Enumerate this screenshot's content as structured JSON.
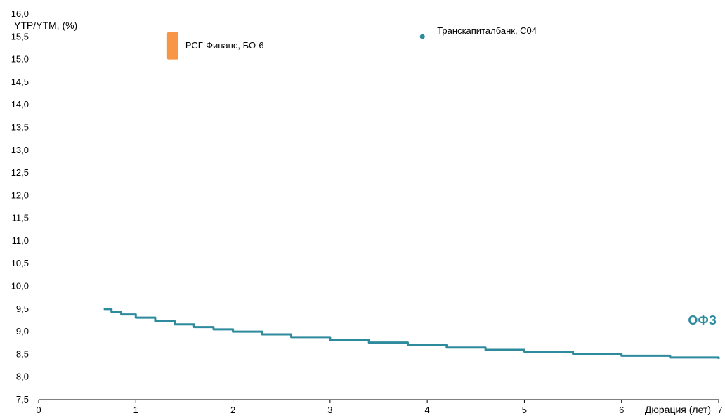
{
  "chart_data": {
    "type": "line",
    "xlabel": "Дюрация (лет)",
    "ylabel": "YTP/YTM, (%)",
    "xlim": [
      0,
      7
    ],
    "ylim": [
      7.5,
      16.0
    ],
    "x_ticks": [
      "0",
      "1",
      "2",
      "3",
      "4",
      "5",
      "6",
      "7"
    ],
    "y_ticks": [
      "7,5",
      "8,0",
      "8,5",
      "9,0",
      "9,5",
      "10,0",
      "10,5",
      "11,0",
      "11,5",
      "12,0",
      "12,5",
      "13,0",
      "13,5",
      "14,0",
      "14,5",
      "15,0",
      "15,5",
      "16,0"
    ],
    "grid": false,
    "series": [
      {
        "name": "ОФЗ",
        "color": "#2e8b9e",
        "x": [
          0.67,
          0.75,
          0.85,
          1.0,
          1.2,
          1.4,
          1.6,
          1.8,
          2.0,
          2.3,
          2.6,
          3.0,
          3.4,
          3.8,
          4.2,
          4.6,
          5.0,
          5.5,
          6.0,
          6.5,
          7.0
        ],
        "y": [
          9.5,
          9.44,
          9.38,
          9.31,
          9.23,
          9.16,
          9.1,
          9.05,
          9.0,
          8.94,
          8.88,
          8.82,
          8.76,
          8.7,
          8.65,
          8.6,
          8.56,
          8.51,
          8.47,
          8.43,
          8.4
        ]
      }
    ],
    "points": [
      {
        "label": "Транскапиталбанк, С04",
        "x": 3.95,
        "y": 15.55,
        "color": "#2e8b9e",
        "shape": "circle"
      },
      {
        "label": "РСГ-Финанс, БО-6",
        "x": 1.38,
        "y_range": [
          15.0,
          15.6
        ],
        "color": "#f79646",
        "shape": "bar"
      }
    ]
  }
}
